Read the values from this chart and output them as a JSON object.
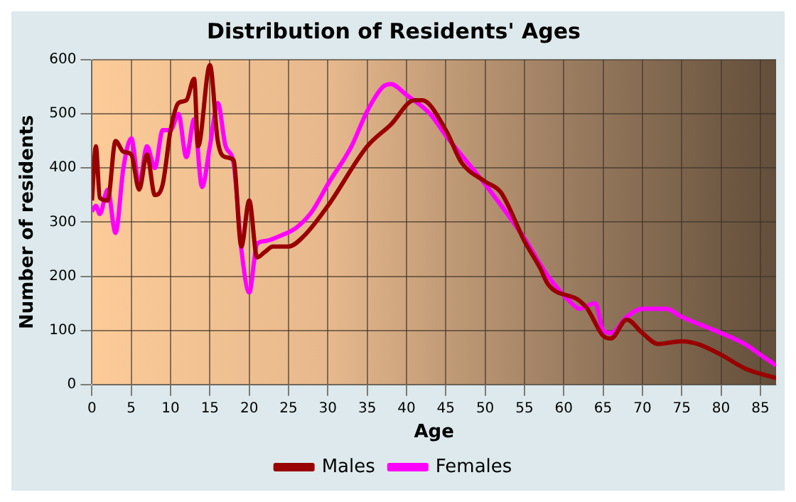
{
  "chart_data": {
    "type": "line",
    "title": "Distribution of Residents' Ages",
    "xlabel": "Age",
    "ylabel": "Number of residents",
    "xlim": [
      0,
      87
    ],
    "ylim": [
      0,
      600
    ],
    "xticks": [
      0,
      5,
      10,
      15,
      20,
      25,
      30,
      35,
      40,
      45,
      50,
      55,
      60,
      65,
      70,
      75,
      80,
      85
    ],
    "yticks": [
      0,
      100,
      200,
      300,
      400,
      500,
      600
    ],
    "grid": true,
    "legend": "bottom",
    "marker": "none",
    "line_style": "solid",
    "series": [
      {
        "name": "Males",
        "color": "#990000",
        "x": [
          0,
          0.5,
          1,
          2,
          3,
          4,
          5,
          6,
          7,
          8,
          9,
          10,
          11,
          12,
          13,
          13.5,
          15,
          16,
          17,
          18,
          19,
          20,
          21,
          22,
          23,
          25,
          27,
          30,
          35,
          38,
          41,
          42,
          45,
          47,
          50,
          52,
          55,
          57,
          58,
          62,
          63,
          65,
          66,
          68,
          70,
          72,
          75,
          77,
          80,
          83,
          85,
          87
        ],
        "values": [
          340,
          440,
          345,
          340,
          450,
          430,
          425,
          360,
          425,
          350,
          370,
          470,
          520,
          525,
          565,
          440,
          590,
          450,
          420,
          415,
          255,
          340,
          235,
          245,
          255,
          255,
          275,
          330,
          440,
          480,
          525,
          525,
          470,
          410,
          375,
          355,
          265,
          215,
          185,
          155,
          140,
          90,
          85,
          120,
          95,
          75,
          80,
          75,
          55,
          30,
          20,
          12
        ]
      },
      {
        "name": "Females",
        "color": "#ff00ff",
        "x": [
          0,
          0.5,
          1,
          2,
          3,
          4,
          5,
          6,
          7,
          8,
          9,
          10,
          11,
          12,
          13,
          14,
          15,
          16,
          17,
          18,
          19,
          20,
          21,
          22,
          24,
          26,
          28,
          30,
          33,
          35,
          37,
          38,
          40,
          43,
          45,
          50,
          55,
          58,
          61,
          62,
          64,
          65,
          66,
          68,
          70,
          73,
          75,
          80,
          83,
          85,
          87
        ],
        "values": [
          320,
          330,
          315,
          360,
          280,
          400,
          455,
          370,
          440,
          400,
          470,
          470,
          500,
          420,
          490,
          365,
          440,
          520,
          440,
          410,
          250,
          170,
          260,
          265,
          275,
          290,
          320,
          370,
          440,
          505,
          550,
          555,
          535,
          500,
          460,
          370,
          270,
          200,
          150,
          140,
          150,
          100,
          95,
          125,
          140,
          140,
          125,
          95,
          75,
          55,
          35
        ]
      }
    ]
  }
}
